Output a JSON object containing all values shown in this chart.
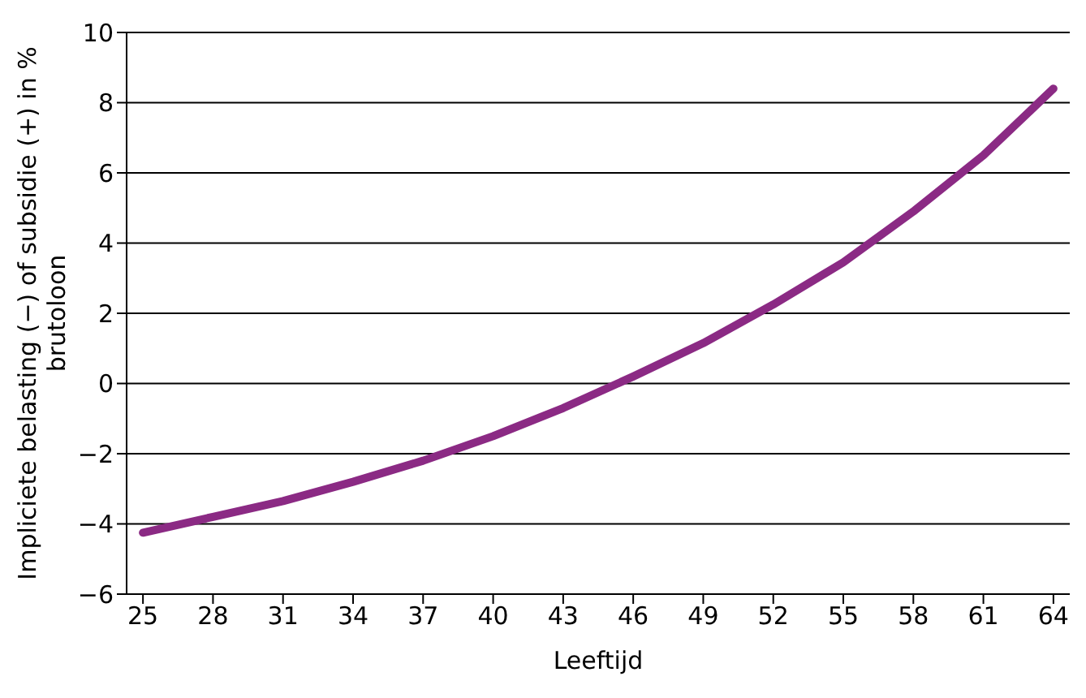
{
  "chart_data": {
    "type": "line",
    "xlabel": "Leeftijd",
    "ylabel": "Impliciete belasting (−) of subsidie (+) in % brutoloon",
    "x": [
      25,
      28,
      31,
      34,
      37,
      40,
      43,
      46,
      49,
      52,
      55,
      58,
      61,
      64
    ],
    "series": [
      {
        "color": "#8b2a84",
        "values": [
          -4.25,
          -3.8,
          -3.35,
          -2.8,
          -2.2,
          -1.5,
          -0.7,
          0.2,
          1.15,
          2.25,
          3.45,
          4.9,
          6.5,
          8.4
        ]
      }
    ],
    "xlim": [
      24.3,
      64.7
    ],
    "xticks": [
      25,
      28,
      31,
      34,
      37,
      40,
      43,
      46,
      49,
      52,
      55,
      58,
      61,
      64
    ],
    "ylim": [
      -6,
      10
    ],
    "yticks": [
      {
        "value": -6,
        "label": "−6"
      },
      {
        "value": -4,
        "label": "−4"
      },
      {
        "value": -2,
        "label": "−2"
      },
      0,
      2,
      4,
      6,
      8,
      10
    ],
    "grid": "y",
    "marker": "none",
    "line_style": "solid"
  }
}
